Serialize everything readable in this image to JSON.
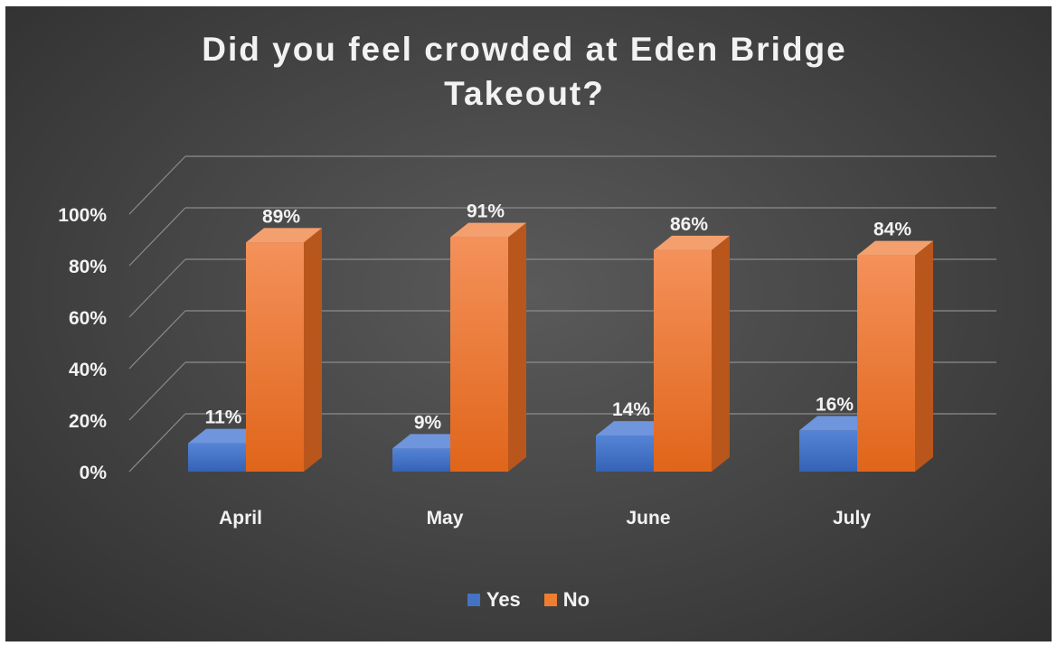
{
  "chart_data": {
    "type": "bar",
    "title": "Did you feel crowded at Eden Bridge Takeout?",
    "categories": [
      "April",
      "May",
      "June",
      "July"
    ],
    "series": [
      {
        "name": "Yes",
        "values": [
          11,
          9,
          14,
          16
        ],
        "labels": [
          "11%",
          "9%",
          "14%",
          "16%"
        ],
        "color": "#4472c4"
      },
      {
        "name": "No",
        "values": [
          89,
          91,
          86,
          84
        ],
        "labels": [
          "89%",
          "91%",
          "86%",
          "84%"
        ],
        "color": "#ed7d31"
      }
    ],
    "yticks": [
      "0%",
      "20%",
      "40%",
      "60%",
      "80%",
      "100%"
    ],
    "ylim": [
      0,
      100
    ],
    "grid": true,
    "legend": "bottom",
    "style": "3d-clustered-column"
  }
}
